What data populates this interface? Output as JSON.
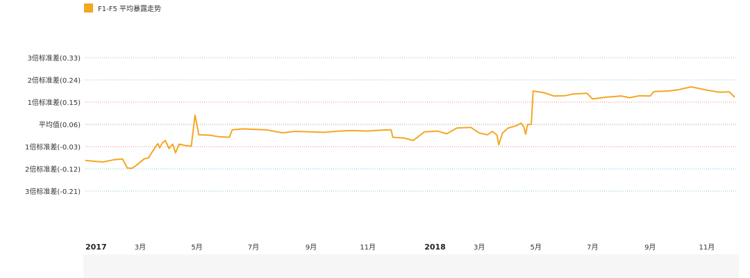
{
  "chart_data": {
    "type": "line",
    "legend": {
      "label": "F1-F5 平均暴露走势",
      "position": "top-left"
    },
    "series": [
      {
        "name": "F1-F5 平均暴露走势",
        "color": "#f5a623",
        "points": [
          [
            "2017-01-01",
            -0.086
          ],
          [
            "2017-01-10",
            -0.089
          ],
          [
            "2017-01-20",
            -0.092
          ],
          [
            "2017-02-01",
            -0.083
          ],
          [
            "2017-02-10",
            -0.08
          ],
          [
            "2017-02-15",
            -0.116
          ],
          [
            "2017-02-20",
            -0.118
          ],
          [
            "2017-02-25",
            -0.105
          ],
          [
            "2017-03-05",
            -0.08
          ],
          [
            "2017-03-10",
            -0.075
          ],
          [
            "2017-03-15",
            -0.045
          ],
          [
            "2017-03-20",
            -0.018
          ],
          [
            "2017-03-22",
            -0.035
          ],
          [
            "2017-03-25",
            -0.014
          ],
          [
            "2017-03-28",
            -0.005
          ],
          [
            "2017-04-01",
            -0.038
          ],
          [
            "2017-04-05",
            -0.02
          ],
          [
            "2017-04-08",
            -0.055
          ],
          [
            "2017-04-12",
            -0.02
          ],
          [
            "2017-04-18",
            -0.025
          ],
          [
            "2017-04-25",
            -0.028
          ],
          [
            "2017-04-29",
            0.098
          ],
          [
            "2017-05-03",
            0.018
          ],
          [
            "2017-05-15",
            0.016
          ],
          [
            "2017-05-25",
            0.01
          ],
          [
            "2017-06-05",
            0.008
          ],
          [
            "2017-06-08",
            0.038
          ],
          [
            "2017-06-20",
            0.042
          ],
          [
            "2017-07-01",
            0.04
          ],
          [
            "2017-07-15",
            0.038
          ],
          [
            "2017-08-01",
            0.026
          ],
          [
            "2017-08-15",
            0.032
          ],
          [
            "2017-09-01",
            0.03
          ],
          [
            "2017-09-15",
            0.028
          ],
          [
            "2017-10-01",
            0.033
          ],
          [
            "2017-10-15",
            0.035
          ],
          [
            "2017-11-01",
            0.033
          ],
          [
            "2017-11-15",
            0.037
          ],
          [
            "2017-11-26",
            0.038
          ],
          [
            "2017-11-28",
            0.008
          ],
          [
            "2017-12-10",
            0.005
          ],
          [
            "2017-12-20",
            -0.005
          ],
          [
            "2018-01-01",
            0.03
          ],
          [
            "2018-01-15",
            0.033
          ],
          [
            "2018-01-25",
            0.022
          ],
          [
            "2018-02-05",
            0.045
          ],
          [
            "2018-02-20",
            0.048
          ],
          [
            "2018-03-01",
            0.025
          ],
          [
            "2018-03-10",
            0.018
          ],
          [
            "2018-03-15",
            0.032
          ],
          [
            "2018-03-20",
            0.017
          ],
          [
            "2018-03-22",
            -0.022
          ],
          [
            "2018-03-26",
            0.025
          ],
          [
            "2018-04-01",
            0.045
          ],
          [
            "2018-04-10",
            0.055
          ],
          [
            "2018-04-15",
            0.065
          ],
          [
            "2018-04-18",
            0.05
          ],
          [
            "2018-04-20",
            0.02
          ],
          [
            "2018-04-22",
            0.06
          ],
          [
            "2018-04-26",
            0.06
          ],
          [
            "2018-04-28",
            0.195
          ],
          [
            "2018-05-10",
            0.188
          ],
          [
            "2018-05-20",
            0.175
          ],
          [
            "2018-06-01",
            0.176
          ],
          [
            "2018-06-10",
            0.183
          ],
          [
            "2018-06-25",
            0.186
          ],
          [
            "2018-07-01",
            0.163
          ],
          [
            "2018-07-15",
            0.17
          ],
          [
            "2018-08-01",
            0.175
          ],
          [
            "2018-08-10",
            0.168
          ],
          [
            "2018-08-20",
            0.176
          ],
          [
            "2018-09-01",
            0.175
          ],
          [
            "2018-09-05",
            0.193
          ],
          [
            "2018-09-20",
            0.195
          ],
          [
            "2018-10-01",
            0.2
          ],
          [
            "2018-10-15",
            0.212
          ],
          [
            "2018-11-01",
            0.199
          ],
          [
            "2018-11-15",
            0.19
          ],
          [
            "2018-11-25",
            0.192
          ],
          [
            "2018-12-01",
            0.17
          ]
        ]
      }
    ],
    "y_reference_lines": [
      {
        "label": "3倍标准差(0.33)",
        "value": 0.33,
        "color": "#7fd27f"
      },
      {
        "label": "2倍标准差(0.24)",
        "value": 0.24,
        "color": "#6ec6f0"
      },
      {
        "label": "1倍标准差(0.15)",
        "value": 0.15,
        "color": "#f08080"
      },
      {
        "label": "平均值(0.06)",
        "value": 0.06,
        "color": "#999999"
      },
      {
        "label": "1倍标准差(-0.03)",
        "value": -0.03,
        "color": "#f08080"
      },
      {
        "label": "2倍标准差(-0.12)",
        "value": -0.12,
        "color": "#6ec6f0"
      },
      {
        "label": "3倍标准差(-0.21)",
        "value": -0.21,
        "color": "#7fd27f"
      }
    ],
    "x_ticks": [
      {
        "label": "2017",
        "date": "2017-01-01",
        "year": true
      },
      {
        "label": "3月",
        "date": "2017-03-01",
        "year": false
      },
      {
        "label": "5月",
        "date": "2017-05-01",
        "year": false
      },
      {
        "label": "7月",
        "date": "2017-07-01",
        "year": false
      },
      {
        "label": "9月",
        "date": "2017-09-01",
        "year": false
      },
      {
        "label": "11月",
        "date": "2017-11-01",
        "year": false
      },
      {
        "label": "2018",
        "date": "2018-01-01",
        "year": true
      },
      {
        "label": "3月",
        "date": "2018-03-01",
        "year": false
      },
      {
        "label": "5月",
        "date": "2018-05-01",
        "year": false
      },
      {
        "label": "7月",
        "date": "2018-07-01",
        "year": false
      },
      {
        "label": "9月",
        "date": "2018-09-01",
        "year": false
      },
      {
        "label": "11月",
        "date": "2018-11-01",
        "year": false
      }
    ],
    "x_range": [
      "2017-01-01",
      "2018-12-04"
    ],
    "y_range": [
      -0.21,
      0.33
    ],
    "grid": "reference-lines-only"
  }
}
